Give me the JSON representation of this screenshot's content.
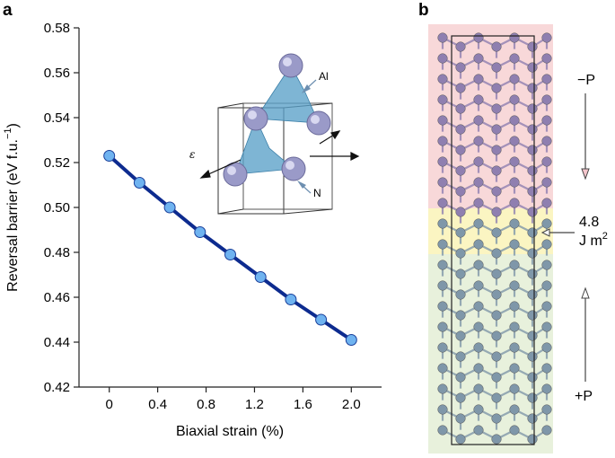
{
  "panels": {
    "a": "a",
    "b": "b"
  },
  "chart_data": {
    "type": "line",
    "xlabel": "Biaxial strain (%)",
    "ylabel": "Reversal barrier (eV f.u.",
    "ylabel_sup": "−1",
    "ylabel_close": ")",
    "xlim": [
      -0.25,
      2.25
    ],
    "ylim": [
      0.42,
      0.58
    ],
    "xticks": [
      0,
      0.4,
      0.8,
      1.2,
      1.6,
      2.0
    ],
    "xtick_labels": [
      "0",
      "0.4",
      "0.8",
      "1.2",
      "1.6",
      "2.0"
    ],
    "yticks": [
      0.42,
      0.44,
      0.46,
      0.48,
      0.5,
      0.52,
      0.54,
      0.56,
      0.58
    ],
    "ytick_labels": [
      "0.42",
      "0.44",
      "0.46",
      "0.48",
      "0.50",
      "0.52",
      "0.54",
      "0.56",
      "0.58"
    ],
    "x": [
      0,
      0.25,
      0.5,
      0.75,
      1.0,
      1.25,
      1.5,
      1.75,
      2.0
    ],
    "y": [
      0.523,
      0.511,
      0.5,
      0.489,
      0.479,
      0.469,
      0.459,
      0.45,
      0.441
    ],
    "line_color": "#0d2b8f",
    "marker_color": "#6fb3f0",
    "grid": false
  },
  "inset": {
    "al_label": "Al",
    "n_label": "N",
    "strain_label": "ε"
  },
  "structure": {
    "top_label": "−P",
    "bottom_label": "+P",
    "wall_value": "4.8",
    "wall_unit": "J m",
    "wall_unit_sup": "2",
    "colors": {
      "top": "#f8d8d9",
      "wall": "#fbf5c2",
      "bottom": "#e8f1dc",
      "atom_top": "#8f7fb0",
      "atom_bottom": "#7f97a9"
    }
  }
}
